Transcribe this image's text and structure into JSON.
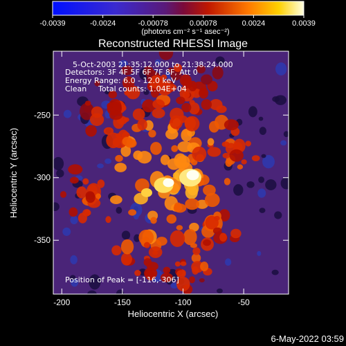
{
  "colorbar": {
    "ticks": [
      "-0.0039",
      "-0.0024",
      "-0.00078",
      "0.00078",
      "0.0024",
      "0.0039"
    ],
    "units_label": "(photons cm⁻² s⁻¹ asec⁻²)"
  },
  "chart_data": {
    "type": "heatmap",
    "title": "Reconstructed RHESSI Image",
    "xlabel": "Heliocentric X (arcsec)",
    "ylabel": "Heliocentric Y (arcsec)",
    "xlim": [
      -207,
      -13
    ],
    "ylim": [
      -393,
      -199
    ],
    "x_ticks": [
      -200,
      -150,
      -100,
      -50
    ],
    "y_ticks": [
      -250,
      -300,
      -350
    ],
    "annotations": {
      "time_range": "5-Oct-2003 21:35:12.000 to 21:38:24.000",
      "detectors": "Detectors: 3F 4F 5F 6F 7F 8F, Att 0",
      "energy": "Energy Range: 6.0 - 12.0 keV",
      "algorithm": "Clean",
      "counts": "Total counts: 1.04E+04",
      "peak": "Position of Peak = [-116,-306]"
    },
    "peak": {
      "x": -116,
      "y": -306
    },
    "color_range": [
      -0.0039,
      0.0039
    ],
    "colors": {
      "low": "#0000ff",
      "mid": "#5a1a78",
      "high": "#ffffd0"
    }
  },
  "footer": {
    "timestamp": "6-May-2022 03:59"
  }
}
